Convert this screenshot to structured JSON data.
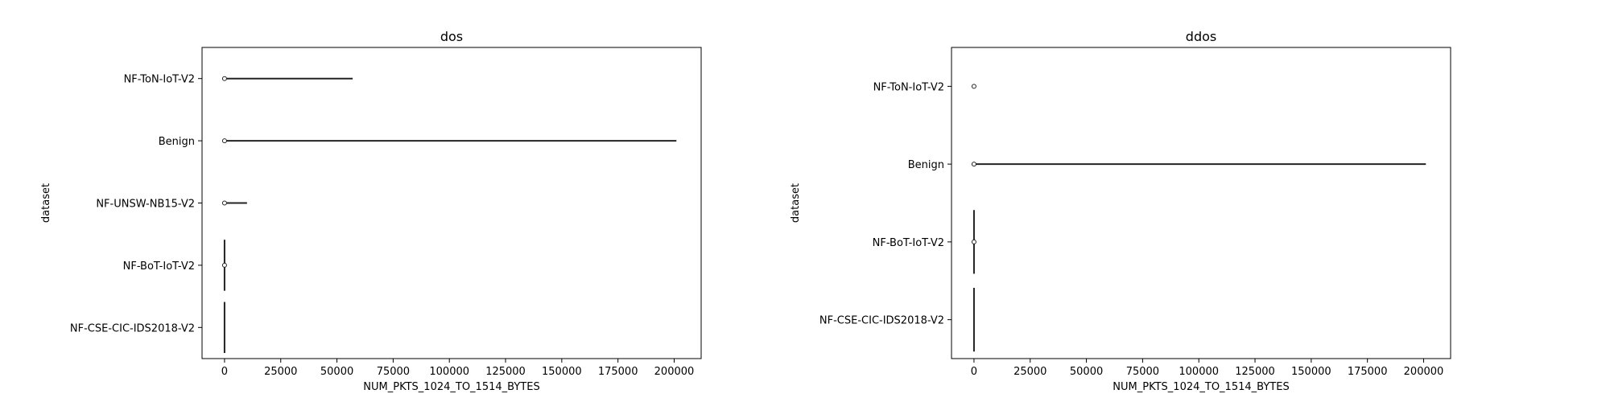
{
  "chart_data": [
    {
      "type": "violin",
      "title": "dos",
      "xlabel": "NUM_PKTS_1024_TO_1514_BYTES",
      "ylabel": "dataset",
      "xlim": [
        -10000,
        212000
      ],
      "xticks": [
        0,
        25000,
        50000,
        75000,
        100000,
        125000,
        150000,
        175000,
        200000
      ],
      "categories": [
        "NF-ToN-IoT-V2",
        "Benign",
        "NF-UNSW-NB15-V2",
        "NF-BoT-IoT-V2",
        "NF-CSE-CIC-IDS2018-V2"
      ],
      "violins": [
        {
          "category": "NF-ToN-IoT-V2",
          "min": 0,
          "max": 57000,
          "median": 0,
          "vertical_spread": false
        },
        {
          "category": "Benign",
          "min": 0,
          "max": 201000,
          "median": 0,
          "vertical_spread": false
        },
        {
          "category": "NF-UNSW-NB15-V2",
          "min": 0,
          "max": 10000,
          "median": 0,
          "vertical_spread": false
        },
        {
          "category": "NF-BoT-IoT-V2",
          "min": 0,
          "max": 0,
          "median": 0,
          "vertical_spread": true
        },
        {
          "category": "NF-CSE-CIC-IDS2018-V2",
          "min": 0,
          "max": 0,
          "median": null,
          "vertical_spread": true
        }
      ]
    },
    {
      "type": "violin",
      "title": "ddos",
      "xlabel": "NUM_PKTS_1024_TO_1514_BYTES",
      "ylabel": "dataset",
      "xlim": [
        -10000,
        212000
      ],
      "xticks": [
        0,
        25000,
        50000,
        75000,
        100000,
        125000,
        150000,
        175000,
        200000
      ],
      "categories": [
        "NF-ToN-IoT-V2",
        "Benign",
        "NF-BoT-IoT-V2",
        "NF-CSE-CIC-IDS2018-V2"
      ],
      "violins": [
        {
          "category": "NF-ToN-IoT-V2",
          "min": 0,
          "max": 0,
          "median": 0,
          "vertical_spread": false
        },
        {
          "category": "Benign",
          "min": 0,
          "max": 201000,
          "median": 0,
          "vertical_spread": false
        },
        {
          "category": "NF-BoT-IoT-V2",
          "min": 0,
          "max": 0,
          "median": 0,
          "vertical_spread": true
        },
        {
          "category": "NF-CSE-CIC-IDS2018-V2",
          "min": 0,
          "max": 0,
          "median": null,
          "vertical_spread": true
        }
      ]
    }
  ]
}
